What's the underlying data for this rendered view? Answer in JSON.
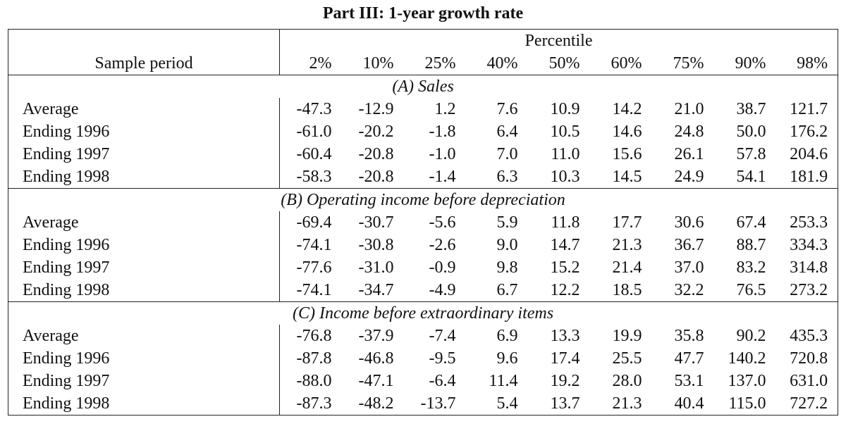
{
  "table": {
    "title": "Part III: 1-year growth rate",
    "percentile_header": "Percentile",
    "period_header": "Sample period",
    "percentiles": [
      "2%",
      "10%",
      "25%",
      "40%",
      "50%",
      "60%",
      "75%",
      "90%",
      "98%"
    ],
    "sections": [
      {
        "title": "(A) Sales",
        "rows": [
          {
            "label": "Average",
            "values": [
              "-47.3",
              "-12.9",
              "1.2",
              "7.6",
              "10.9",
              "14.2",
              "21.0",
              "38.7",
              "121.7"
            ]
          },
          {
            "label": "Ending 1996",
            "values": [
              "-61.0",
              "-20.2",
              "-1.8",
              "6.4",
              "10.5",
              "14.6",
              "24.8",
              "50.0",
              "176.2"
            ]
          },
          {
            "label": "Ending 1997",
            "values": [
              "-60.4",
              "-20.8",
              "-1.0",
              "7.0",
              "11.0",
              "15.6",
              "26.1",
              "57.8",
              "204.6"
            ]
          },
          {
            "label": "Ending 1998",
            "values": [
              "-58.3",
              "-20.8",
              "-1.4",
              "6.3",
              "10.3",
              "14.5",
              "24.9",
              "54.1",
              "181.9"
            ]
          }
        ]
      },
      {
        "title": "(B) Operating income before depreciation",
        "rows": [
          {
            "label": "Average",
            "values": [
              "-69.4",
              "-30.7",
              "-5.6",
              "5.9",
              "11.8",
              "17.7",
              "30.6",
              "67.4",
              "253.3"
            ]
          },
          {
            "label": "Ending 1996",
            "values": [
              "-74.1",
              "-30.8",
              "-2.6",
              "9.0",
              "14.7",
              "21.3",
              "36.7",
              "88.7",
              "334.3"
            ]
          },
          {
            "label": "Ending 1997",
            "values": [
              "-77.6",
              "-31.0",
              "-0.9",
              "9.8",
              "15.2",
              "21.4",
              "37.0",
              "83.2",
              "314.8"
            ]
          },
          {
            "label": "Ending 1998",
            "values": [
              "-74.1",
              "-34.7",
              "-4.9",
              "6.7",
              "12.2",
              "18.5",
              "32.2",
              "76.5",
              "273.2"
            ]
          }
        ]
      },
      {
        "title": "(C) Income before extraordinary items",
        "rows": [
          {
            "label": "Average",
            "values": [
              "-76.8",
              "-37.9",
              "-7.4",
              "6.9",
              "13.3",
              "19.9",
              "35.8",
              "90.2",
              "435.3"
            ]
          },
          {
            "label": "Ending 1996",
            "values": [
              "-87.8",
              "-46.8",
              "-9.5",
              "9.6",
              "17.4",
              "25.5",
              "47.7",
              "140.2",
              "720.8"
            ]
          },
          {
            "label": "Ending 1997",
            "values": [
              "-88.0",
              "-47.1",
              "-6.4",
              "11.4",
              "19.2",
              "28.0",
              "53.1",
              "137.0",
              "631.0"
            ]
          },
          {
            "label": "Ending 1998",
            "values": [
              "-87.3",
              "-48.2",
              "-13.7",
              "5.4",
              "13.7",
              "21.3",
              "40.4",
              "115.0",
              "727.2"
            ]
          }
        ]
      }
    ]
  }
}
